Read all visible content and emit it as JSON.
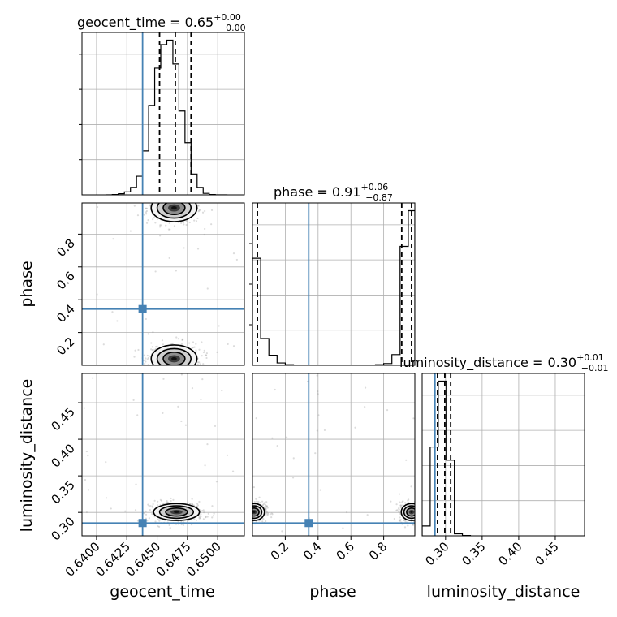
{
  "chart_data": {
    "type": "corner",
    "parameters": [
      "geocent_time",
      "phase",
      "luminosity_distance"
    ],
    "truths": {
      "geocent_time": 0.6438,
      "phase": 0.343,
      "luminosity_distance": 0.2855
    },
    "colors": {
      "truth": "#4682b4",
      "hist": "#000000",
      "grid": "#b0b0b0",
      "samples": "#9a9a9a"
    },
    "marginals": [
      {
        "param": "geocent_time",
        "title_name": "geocent_time",
        "title_value": "0.65",
        "title_plus": "+0.00",
        "title_minus": "−0.00",
        "range": [
          0.6388,
          0.6522
        ],
        "quantiles": [
          0.6452,
          0.6465,
          0.6478
        ],
        "bin_edges": [
          0.6408,
          0.6413,
          0.6418,
          0.6423,
          0.6428,
          0.6433,
          0.6438,
          0.6443,
          0.6448,
          0.6453,
          0.6458,
          0.6463,
          0.6468,
          0.6473,
          0.6478,
          0.6483,
          0.6488,
          0.6493,
          0.6498,
          0.6503,
          0.6508
        ],
        "counts": [
          0,
          1,
          3,
          8,
          20,
          50,
          118,
          240,
          340,
          403,
          415,
          351,
          225,
          140,
          56,
          20,
          4,
          1,
          0,
          0
        ]
      },
      {
        "param": "phase",
        "title_name": "phase",
        "title_value": "0.91",
        "title_plus": "+0.06",
        "title_minus": "−0.87",
        "range": [
          0.0,
          0.99
        ],
        "quantiles": [
          0.03,
          0.91,
          0.97
        ],
        "bin_edges": [
          0.0,
          0.05,
          0.1,
          0.15,
          0.2,
          0.25,
          0.3,
          0.35,
          0.4,
          0.45,
          0.5,
          0.55,
          0.6,
          0.65,
          0.7,
          0.75,
          0.8,
          0.85,
          0.9,
          0.95,
          0.99
        ],
        "counts": [
          180,
          45,
          17,
          4,
          1,
          0,
          0,
          0,
          0,
          0,
          0,
          0,
          0,
          0,
          0,
          1,
          3,
          18,
          200,
          260
        ]
      },
      {
        "param": "luminosity_distance",
        "title_name": "luminosity_distance",
        "title_value": "0.30",
        "title_plus": "+0.01",
        "title_minus": "−0.01",
        "range": [
          0.268,
          0.49
        ],
        "quantiles": [
          0.289,
          0.299,
          0.307
        ],
        "bin_edges": [
          0.268,
          0.279,
          0.29,
          0.301,
          0.312,
          0.323,
          0.334
        ],
        "counts": [
          30,
          270,
          470,
          230,
          6,
          1
        ]
      }
    ],
    "ticks": {
      "geocent_time": [
        "0.6400",
        "0.6425",
        "0.6450",
        "0.6475",
        "0.6500"
      ],
      "phase": [
        "0.2",
        "0.4",
        "0.6",
        "0.8"
      ],
      "luminosity_distance": [
        "0.30",
        "0.35",
        "0.40",
        "0.45"
      ]
    },
    "blobs": [
      {
        "x": "geocent_time",
        "y": "phase",
        "cx": 0.6464,
        "cy": 0.96,
        "sx": 0.0009,
        "sy": 0.04
      },
      {
        "x": "geocent_time",
        "y": "phase",
        "cx": 0.6464,
        "cy": 0.04,
        "sx": 0.0009,
        "sy": 0.04
      },
      {
        "x": "geocent_time",
        "y": "luminosity_distance",
        "cx": 0.6466,
        "cy": 0.3005,
        "sx": 0.0009,
        "sy": 0.0055
      },
      {
        "x": "phase",
        "y": "luminosity_distance",
        "cx": 0.01,
        "cy": 0.3005,
        "sx": 0.03,
        "sy": 0.0055
      },
      {
        "x": "phase",
        "y": "luminosity_distance",
        "cx": 0.97,
        "cy": 0.3005,
        "sx": 0.03,
        "sy": 0.0055
      }
    ]
  }
}
